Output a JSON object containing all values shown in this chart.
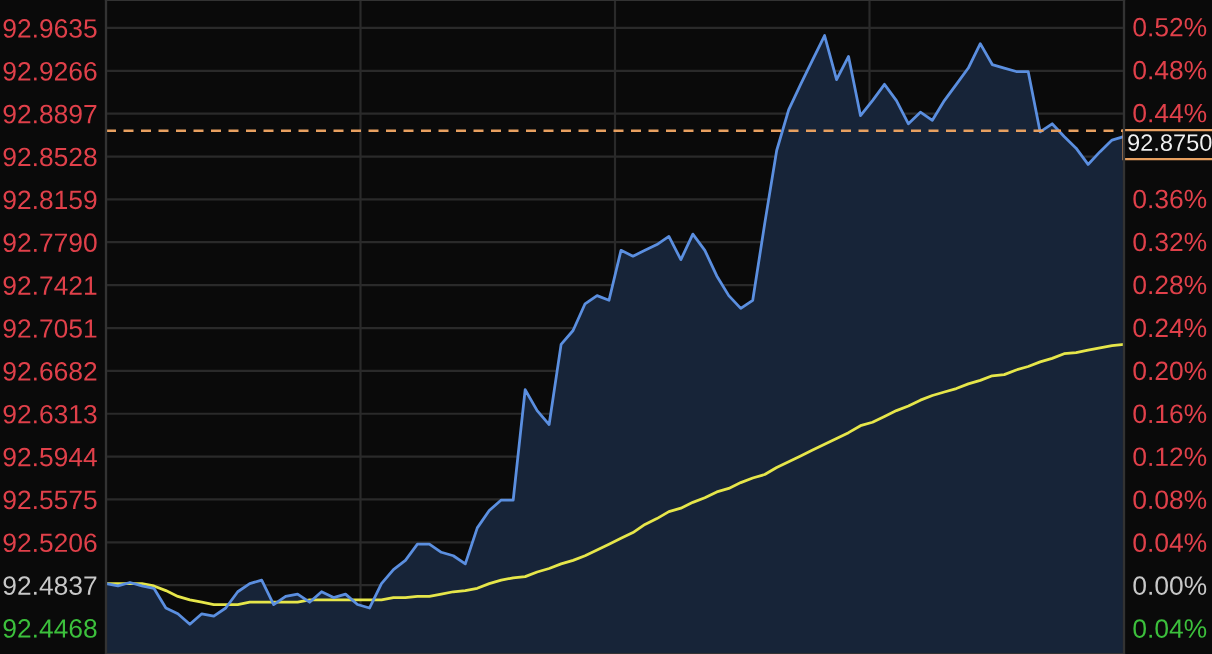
{
  "chart_data": {
    "type": "area",
    "categories": [
      null,
      null,
      null,
      null,
      null,
      null,
      null,
      null,
      null,
      null,
      null,
      null,
      null,
      null,
      null,
      null,
      null,
      null,
      null,
      null,
      null,
      null,
      null,
      null,
      null,
      null,
      null,
      null,
      null,
      null,
      null,
      null,
      null,
      null,
      null,
      null,
      null,
      null,
      null,
      null,
      null,
      null,
      null,
      null,
      null,
      null,
      null,
      null,
      null,
      null,
      null,
      null,
      null,
      null,
      null,
      null,
      null,
      null,
      null,
      null,
      null,
      null,
      null,
      null,
      null,
      null,
      null,
      null,
      null,
      null,
      null,
      null,
      null,
      null,
      null,
      null,
      null,
      null,
      null,
      null,
      null,
      null,
      null,
      null,
      null,
      null
    ],
    "series": [
      {
        "color": "#5b8fe0",
        "values": [
          92.485,
          92.483,
          92.486,
          92.483,
          92.481,
          92.464,
          92.459,
          92.45,
          92.459,
          92.457,
          92.464,
          92.478,
          92.485,
          92.488,
          92.467,
          92.474,
          92.476,
          92.469,
          92.478,
          92.473,
          92.476,
          92.467,
          92.464,
          92.485,
          92.497,
          92.505,
          92.519,
          92.519,
          92.512,
          92.509,
          92.502,
          92.533,
          92.548,
          92.557,
          92.557,
          92.652,
          92.634,
          92.622,
          92.691,
          92.703,
          92.726,
          92.733,
          92.729,
          92.772,
          92.767,
          92.772,
          92.777,
          92.784,
          92.764,
          92.786,
          92.772,
          92.75,
          92.733,
          92.722,
          92.729,
          92.795,
          92.858,
          92.893,
          92.915,
          92.936,
          92.957,
          92.919,
          92.939,
          92.888,
          92.901,
          92.915,
          92.901,
          92.881,
          92.891,
          92.884,
          92.901,
          92.915,
          92.929,
          92.95,
          92.932,
          92.929,
          92.926,
          92.926,
          92.874,
          92.881,
          92.87,
          92.86,
          92.846,
          92.857,
          92.867,
          92.87
        ]
      },
      {
        "type": "line",
        "color": "#e6e64a",
        "values": [
          92.485,
          92.485,
          92.485,
          92.485,
          92.483,
          92.479,
          92.474,
          92.471,
          92.469,
          92.467,
          92.467,
          92.467,
          92.469,
          92.469,
          92.469,
          92.469,
          92.469,
          92.471,
          92.471,
          92.471,
          92.471,
          92.471,
          92.471,
          92.471,
          92.473,
          92.473,
          92.474,
          92.474,
          92.476,
          92.478,
          92.479,
          92.481,
          92.485,
          92.488,
          92.49,
          92.491,
          92.495,
          92.498,
          92.502,
          92.505,
          92.509,
          92.514,
          92.519,
          92.524,
          92.529,
          92.536,
          92.541,
          92.547,
          92.55,
          92.555,
          92.559,
          92.564,
          92.567,
          92.572,
          92.576,
          92.579,
          92.585,
          92.59,
          92.595,
          92.6,
          92.605,
          92.61,
          92.615,
          92.621,
          92.624,
          92.629,
          92.634,
          92.638,
          92.643,
          92.647,
          92.65,
          92.653,
          92.657,
          92.66,
          92.664,
          92.665,
          92.669,
          92.672,
          92.676,
          92.679,
          92.683,
          92.684,
          92.686,
          92.688,
          92.69,
          92.691
        ]
      }
    ],
    "ylim": [
      92.4244,
      92.9876
    ],
    "yticks": [
      {
        "value": 92.9635,
        "label": "92.9635"
      },
      {
        "value": 92.9266,
        "label": "92.9266"
      },
      {
        "value": 92.8897,
        "label": "92.8897"
      },
      {
        "value": 92.8528,
        "label": "92.8528"
      },
      {
        "value": 92.8159,
        "label": "92.8159"
      },
      {
        "value": 92.779,
        "label": "92.7790"
      },
      {
        "value": 92.7421,
        "label": "92.7421"
      },
      {
        "value": 92.7051,
        "label": "92.7051"
      },
      {
        "value": 92.6682,
        "label": "92.6682"
      },
      {
        "value": 92.6313,
        "label": "92.6313"
      },
      {
        "value": 92.5944,
        "label": "92.5944"
      },
      {
        "value": 92.5575,
        "label": "92.5575"
      },
      {
        "value": 92.5206,
        "label": "92.5206"
      },
      {
        "value": 92.4837,
        "label": "92.4837"
      },
      {
        "value": 92.4468,
        "label": "92.4468"
      }
    ],
    "y2lim": [
      -0.0641,
      0.5449
    ],
    "y2ticks": [
      {
        "value": 0.52,
        "label": "0.52%"
      },
      {
        "value": 0.48,
        "label": "0.48%"
      },
      {
        "value": 0.44,
        "label": "0.44%"
      },
      {
        "value": 0.36,
        "label": "0.36%"
      },
      {
        "value": 0.32,
        "label": "0.32%"
      },
      {
        "value": 0.28,
        "label": "0.28%"
      },
      {
        "value": 0.24,
        "label": "0.24%"
      },
      {
        "value": 0.2,
        "label": "0.20%"
      },
      {
        "value": 0.16,
        "label": "0.16%"
      },
      {
        "value": 0.12,
        "label": "0.12%"
      },
      {
        "value": 0.08,
        "label": "0.08%"
      },
      {
        "value": 0.04,
        "label": "0.04%"
      },
      {
        "value": 0,
        "label": "0.00%"
      },
      {
        "value": -0.04,
        "label": "0.04%"
      }
    ],
    "ref_lines": [
      {
        "axis": "y",
        "value": 92.875,
        "label": "92.8750",
        "color": "#e8a060",
        "line_style": "dashed"
      }
    ],
    "grid": true,
    "legend": false
  }
}
